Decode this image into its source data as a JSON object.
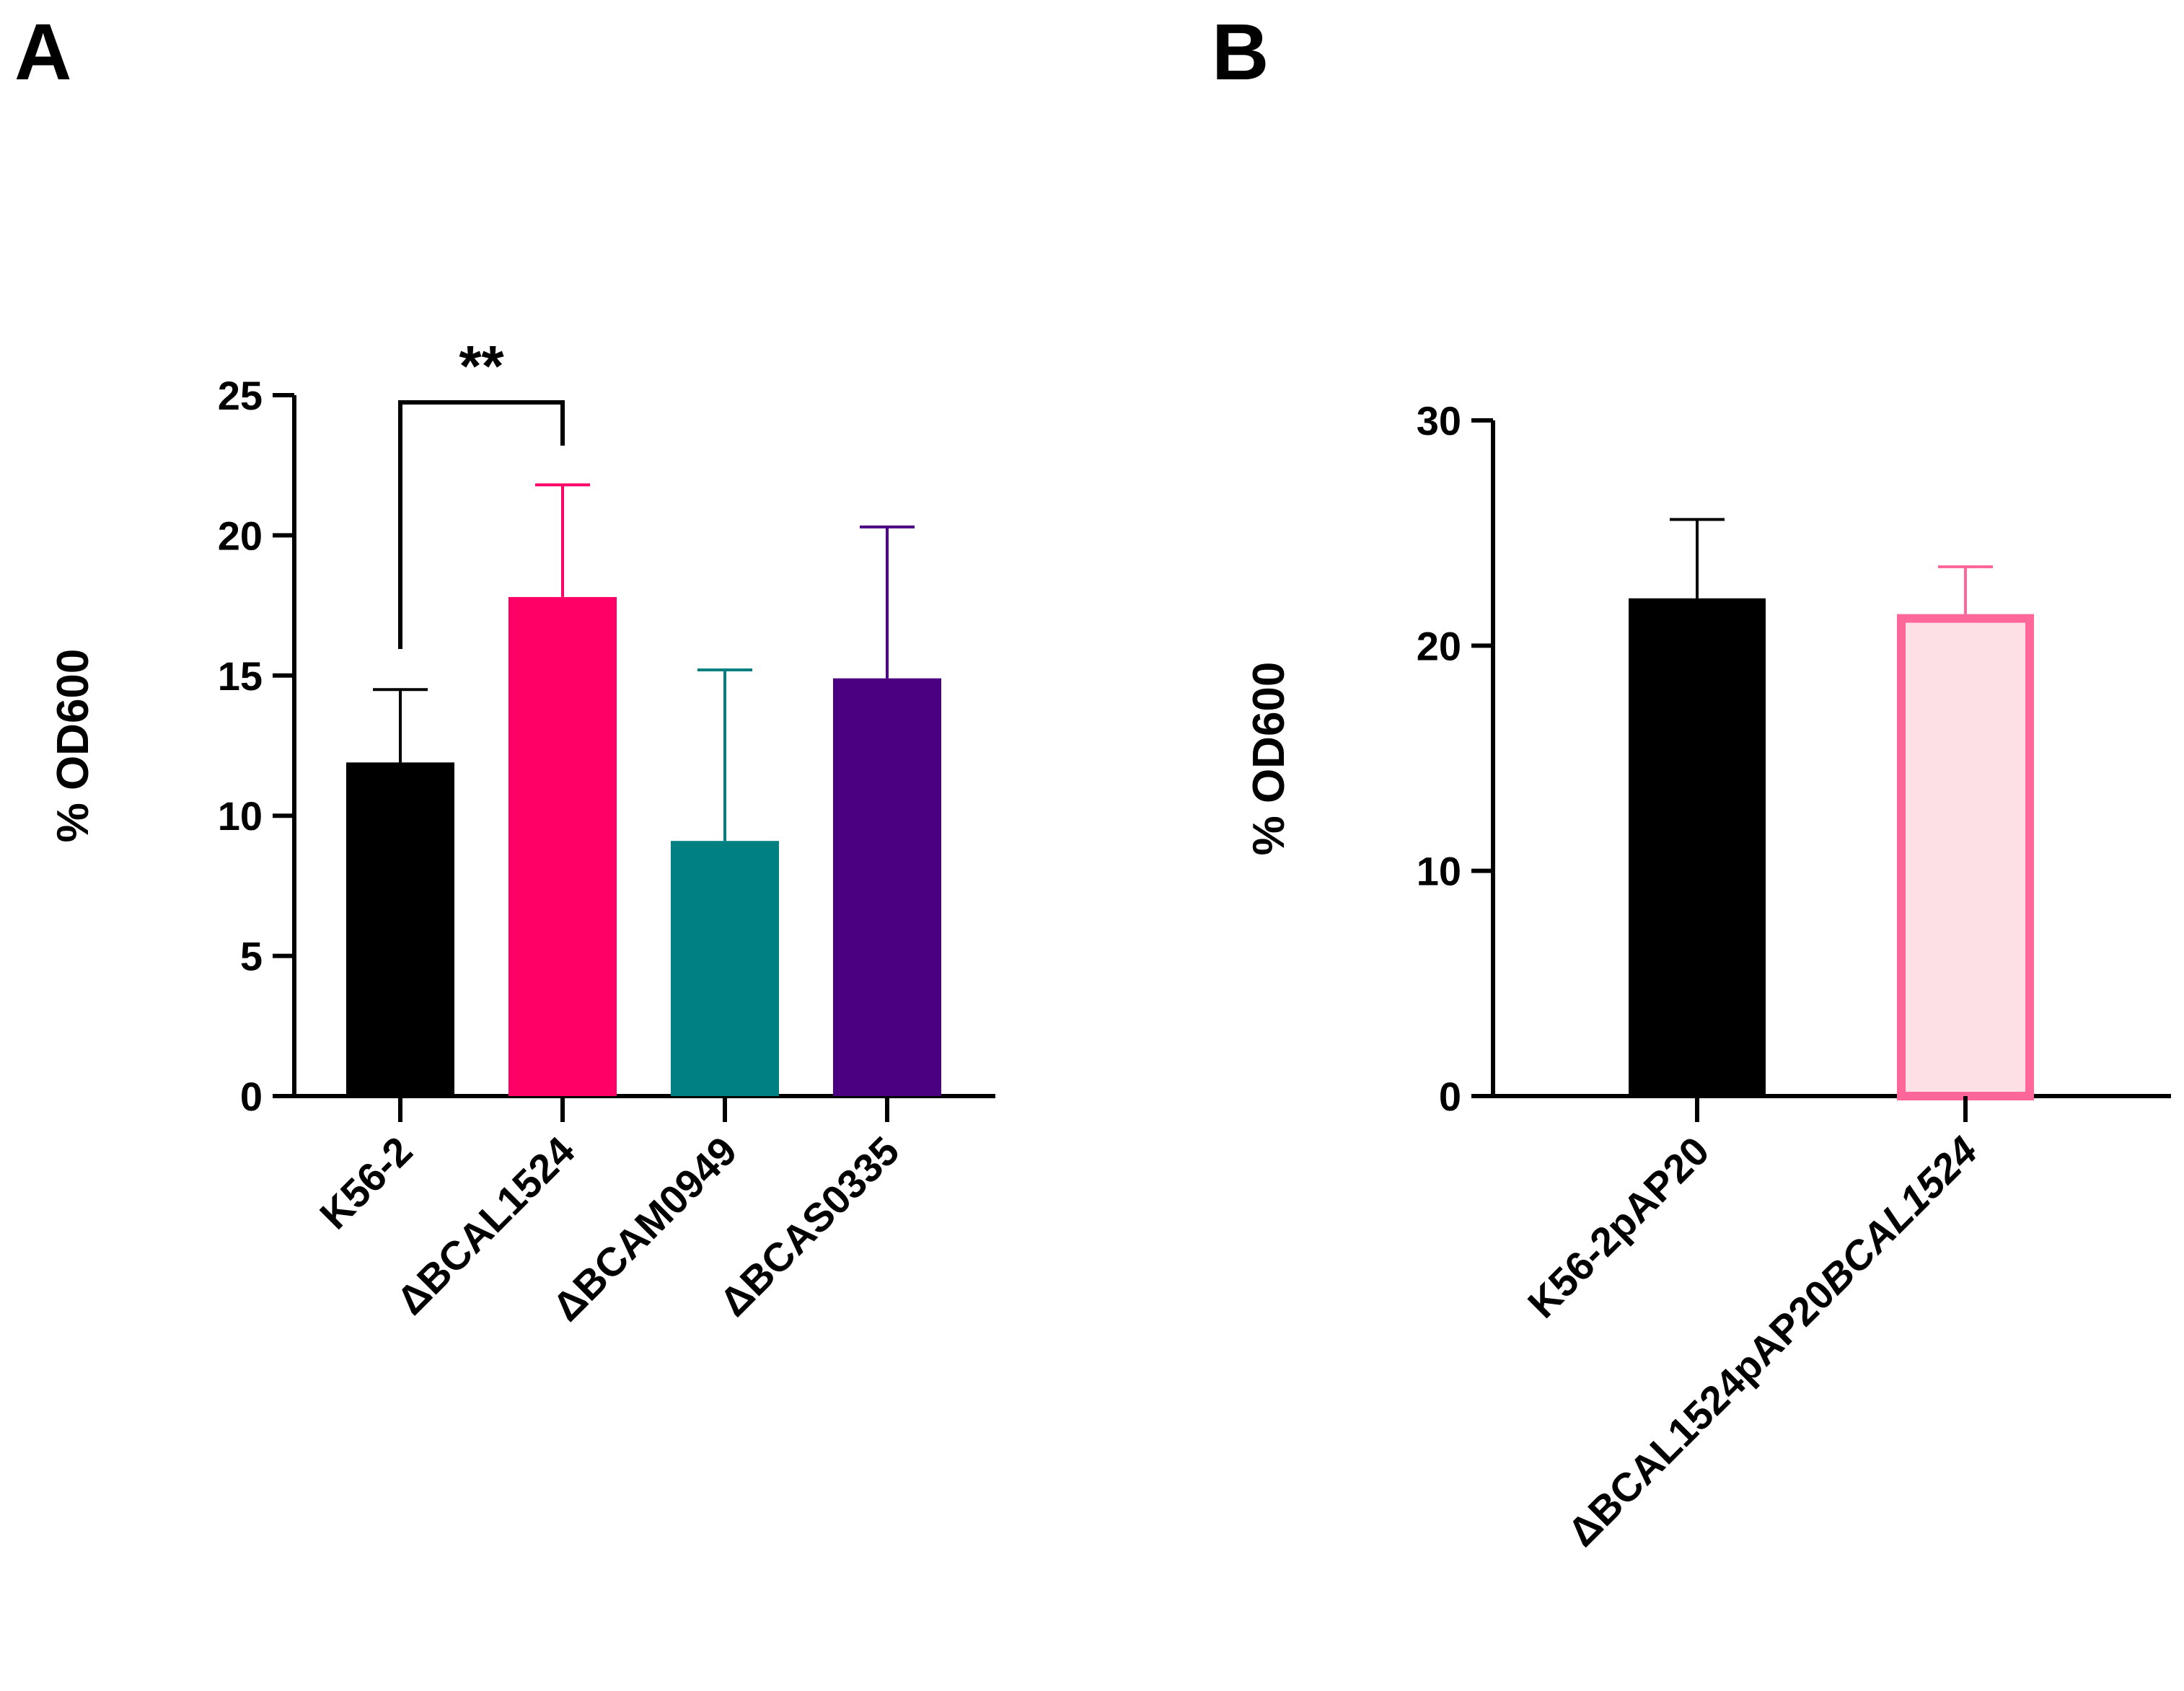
{
  "chart_data": [
    {
      "panel": "A",
      "type": "bar",
      "ylabel": "% OD600",
      "ylim": [
        0,
        25
      ],
      "yticks": [
        0,
        5,
        10,
        15,
        20,
        25
      ],
      "categories": [
        "K56-2",
        "ΔBCAL1524",
        "ΔBCAM0949",
        "ΔBCAS0335"
      ],
      "values": [
        11.9,
        17.8,
        9.1,
        14.9
      ],
      "errors": [
        2.6,
        4.0,
        6.1,
        5.4
      ],
      "colors": [
        "#000000",
        "#ff0066",
        "#008080",
        "#4b0082"
      ],
      "fill": [
        "solid",
        "solid",
        "solid",
        "solid"
      ],
      "significance": {
        "from": 0,
        "to": 1,
        "label": "**"
      }
    },
    {
      "panel": "B",
      "type": "bar",
      "ylabel": "% OD600",
      "ylim": [
        0,
        30
      ],
      "yticks": [
        0,
        10,
        20,
        30
      ],
      "categories": [
        "K56-2pAP20",
        "ΔBCAL1524pAP20BCAL1524"
      ],
      "category_rich": [
        [
          {
            "t": "K56-2pAP20",
            "i": false
          }
        ],
        [
          {
            "t": "ΔBCAL1524pAP20",
            "i": false
          },
          {
            "t": "BCAL1524",
            "i": true
          }
        ]
      ],
      "values": [
        22.1,
        21.4
      ],
      "errors": [
        3.5,
        2.1
      ],
      "colors": [
        "#000000",
        "#ff6699"
      ],
      "fill_colors": [
        "#000000",
        "#fde0e6"
      ],
      "fill": [
        "solid",
        "outline"
      ]
    }
  ]
}
